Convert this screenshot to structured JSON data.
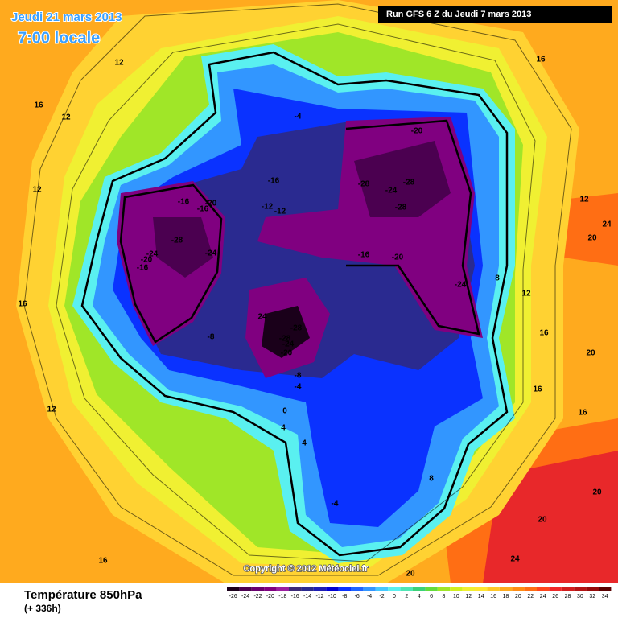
{
  "header": {
    "date": "Jeudi 21 mars 2013",
    "time": "7:00 locale",
    "run": "Run GFS 6 Z du Jeudi 7 mars 2013"
  },
  "footer": {
    "title": "Température 850hPa",
    "lead": "(+ 336h)",
    "copyright": "Copyright © 2012 Météociel.fr"
  },
  "scale": {
    "ticks": [
      -26,
      -24,
      -22,
      -20,
      -18,
      -16,
      -14,
      -12,
      -10,
      -8,
      -6,
      -4,
      -2,
      0,
      2,
      4,
      6,
      8,
      10,
      12,
      14,
      16,
      18,
      20,
      22,
      24,
      26,
      28,
      30,
      32,
      34
    ],
    "colors": [
      "#1a001a",
      "#4b0050",
      "#6a006f",
      "#800080",
      "#9b1fa0",
      "#3c2a78",
      "#2a2a90",
      "#1e1eb4",
      "#0000d2",
      "#0a32ff",
      "#1e64ff",
      "#3296ff",
      "#46c8ff",
      "#5af0f0",
      "#50e6b4",
      "#3cd278",
      "#64dc3c",
      "#a0e628",
      "#d2f01e",
      "#f0f032",
      "#ffe632",
      "#ffc828",
      "#ffaa1e",
      "#ff8c14",
      "#ff6e14",
      "#ff461e",
      "#f02828",
      "#d21e1e",
      "#b41414",
      "#960a0a",
      "#5a0000"
    ]
  },
  "map": {
    "labels": [
      "12",
      "16",
      "12",
      "12",
      "16",
      "12",
      "16",
      "16",
      "12",
      "24",
      "20",
      "12",
      "16",
      "20",
      "16",
      "16",
      "20",
      "20",
      "24",
      "20",
      "-4",
      "-20",
      "-16",
      "-28",
      "-24",
      "-28",
      "-28",
      "-16",
      "-20",
      "-16",
      "-12",
      "-12",
      "-28",
      "-24",
      "-20",
      "-16",
      "-24",
      "-16",
      "-20",
      "-24",
      "8",
      "24",
      "-28",
      "-28",
      "-24",
      "-20",
      "-8",
      "-8",
      "-4",
      "0",
      "4",
      "8",
      "-4",
      "4"
    ]
  }
}
